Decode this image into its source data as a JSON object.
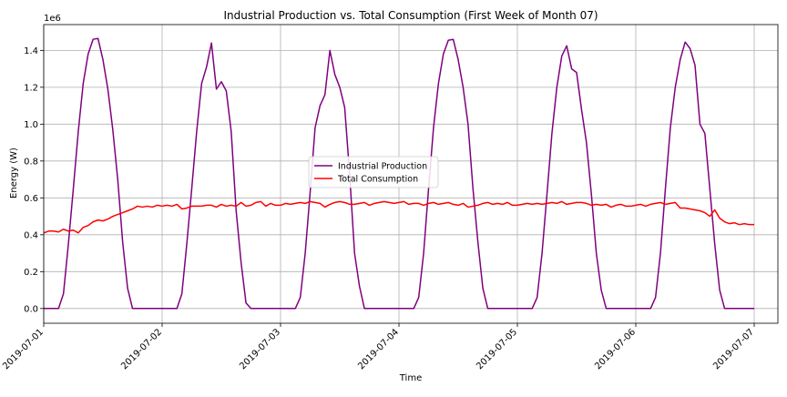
{
  "chart_data": {
    "type": "line",
    "title": "Industrial Production vs. Total Consumption (First Week of Month 07)",
    "xlabel": "Time",
    "ylabel": "Energy (W)",
    "y_offset_label": "1e6",
    "xlim": [
      0,
      6.2
    ],
    "ylim": [
      -0.08,
      1.54
    ],
    "x_ticks": [
      0,
      1,
      2,
      3,
      4,
      5,
      6
    ],
    "x_tick_labels": [
      "2019-07-01",
      "2019-07-02",
      "2019-07-03",
      "2019-07-04",
      "2019-07-05",
      "2019-07-06",
      "2019-07-07"
    ],
    "y_ticks": [
      0.0,
      0.2,
      0.4,
      0.6,
      0.8,
      1.0,
      1.2,
      1.4
    ],
    "y_tick_labels": [
      "0.0",
      "0.2",
      "0.4",
      "0.6",
      "0.8",
      "1.0",
      "1.2",
      "1.4"
    ],
    "grid": true,
    "legend_position": "center",
    "series": [
      {
        "name": "Industrial Production",
        "color": "#800080",
        "x_step_hours": 1,
        "values": [
          0,
          0,
          0.0,
          0,
          0.08,
          0.35,
          0.65,
          0.96,
          1.22,
          1.38,
          1.46,
          1.465,
          1.35,
          1.19,
          0.97,
          0.7,
          0.36,
          0.11,
          0,
          0,
          0,
          0,
          0,
          0,
          0,
          0,
          0.0,
          0,
          0.08,
          0.35,
          0.65,
          0.96,
          1.22,
          1.31,
          1.44,
          1.19,
          1.23,
          1.18,
          0.96,
          0.53,
          0.25,
          0.03,
          0,
          0,
          0,
          0,
          0,
          0,
          0,
          0,
          0.0,
          0,
          0.06,
          0.3,
          0.63,
          0.98,
          1.1,
          1.16,
          1.4,
          1.27,
          1.2,
          1.09,
          0.73,
          0.3,
          0.12,
          0,
          0,
          0,
          0,
          0,
          0,
          0,
          0,
          0,
          0.0,
          0,
          0.06,
          0.3,
          0.65,
          0.98,
          1.22,
          1.38,
          1.455,
          1.46,
          1.35,
          1.2,
          1.0,
          0.65,
          0.36,
          0.11,
          0,
          0,
          0,
          0,
          0,
          0,
          0,
          0,
          0.0,
          0,
          0.06,
          0.3,
          0.62,
          0.95,
          1.2,
          1.37,
          1.425,
          1.3,
          1.28,
          1.08,
          0.9,
          0.62,
          0.3,
          0.1,
          0,
          0,
          0,
          0,
          0,
          0,
          0,
          0,
          0.0,
          0,
          0.06,
          0.3,
          0.65,
          0.98,
          1.2,
          1.35,
          1.445,
          1.41,
          1.32,
          1.0,
          0.95,
          0.65,
          0.35,
          0.1,
          0,
          0,
          0,
          0,
          0,
          0,
          0
        ]
      },
      {
        "name": "Total Consumption",
        "color": "#ff0000",
        "x_step_hours": 1,
        "values": [
          0.41,
          0.42,
          0.42,
          0.415,
          0.43,
          0.42,
          0.425,
          0.41,
          0.44,
          0.45,
          0.47,
          0.48,
          0.475,
          0.485,
          0.5,
          0.51,
          0.52,
          0.53,
          0.54,
          0.555,
          0.55,
          0.555,
          0.55,
          0.56,
          0.555,
          0.56,
          0.555,
          0.565,
          0.54,
          0.545,
          0.555,
          0.555,
          0.555,
          0.56,
          0.56,
          0.55,
          0.565,
          0.555,
          0.56,
          0.555,
          0.575,
          0.555,
          0.56,
          0.575,
          0.58,
          0.555,
          0.57,
          0.56,
          0.56,
          0.57,
          0.565,
          0.57,
          0.575,
          0.57,
          0.58,
          0.575,
          0.57,
          0.55,
          0.565,
          0.575,
          0.58,
          0.575,
          0.565,
          0.565,
          0.57,
          0.575,
          0.56,
          0.57,
          0.575,
          0.58,
          0.575,
          0.57,
          0.575,
          0.58,
          0.565,
          0.57,
          0.57,
          0.56,
          0.57,
          0.575,
          0.565,
          0.57,
          0.575,
          0.565,
          0.56,
          0.57,
          0.55,
          0.555,
          0.56,
          0.57,
          0.575,
          0.565,
          0.57,
          0.565,
          0.575,
          0.56,
          0.56,
          0.565,
          0.57,
          0.565,
          0.57,
          0.565,
          0.57,
          0.575,
          0.57,
          0.58,
          0.565,
          0.57,
          0.575,
          0.575,
          0.57,
          0.56,
          0.565,
          0.56,
          0.565,
          0.55,
          0.56,
          0.565,
          0.555,
          0.555,
          0.56,
          0.565,
          0.555,
          0.565,
          0.57,
          0.575,
          0.565,
          0.57,
          0.575,
          0.545,
          0.545,
          0.54,
          0.535,
          0.53,
          0.52,
          0.5,
          0.535,
          0.49,
          0.47,
          0.46,
          0.465,
          0.455,
          0.46,
          0.455,
          0.455
        ]
      }
    ]
  }
}
